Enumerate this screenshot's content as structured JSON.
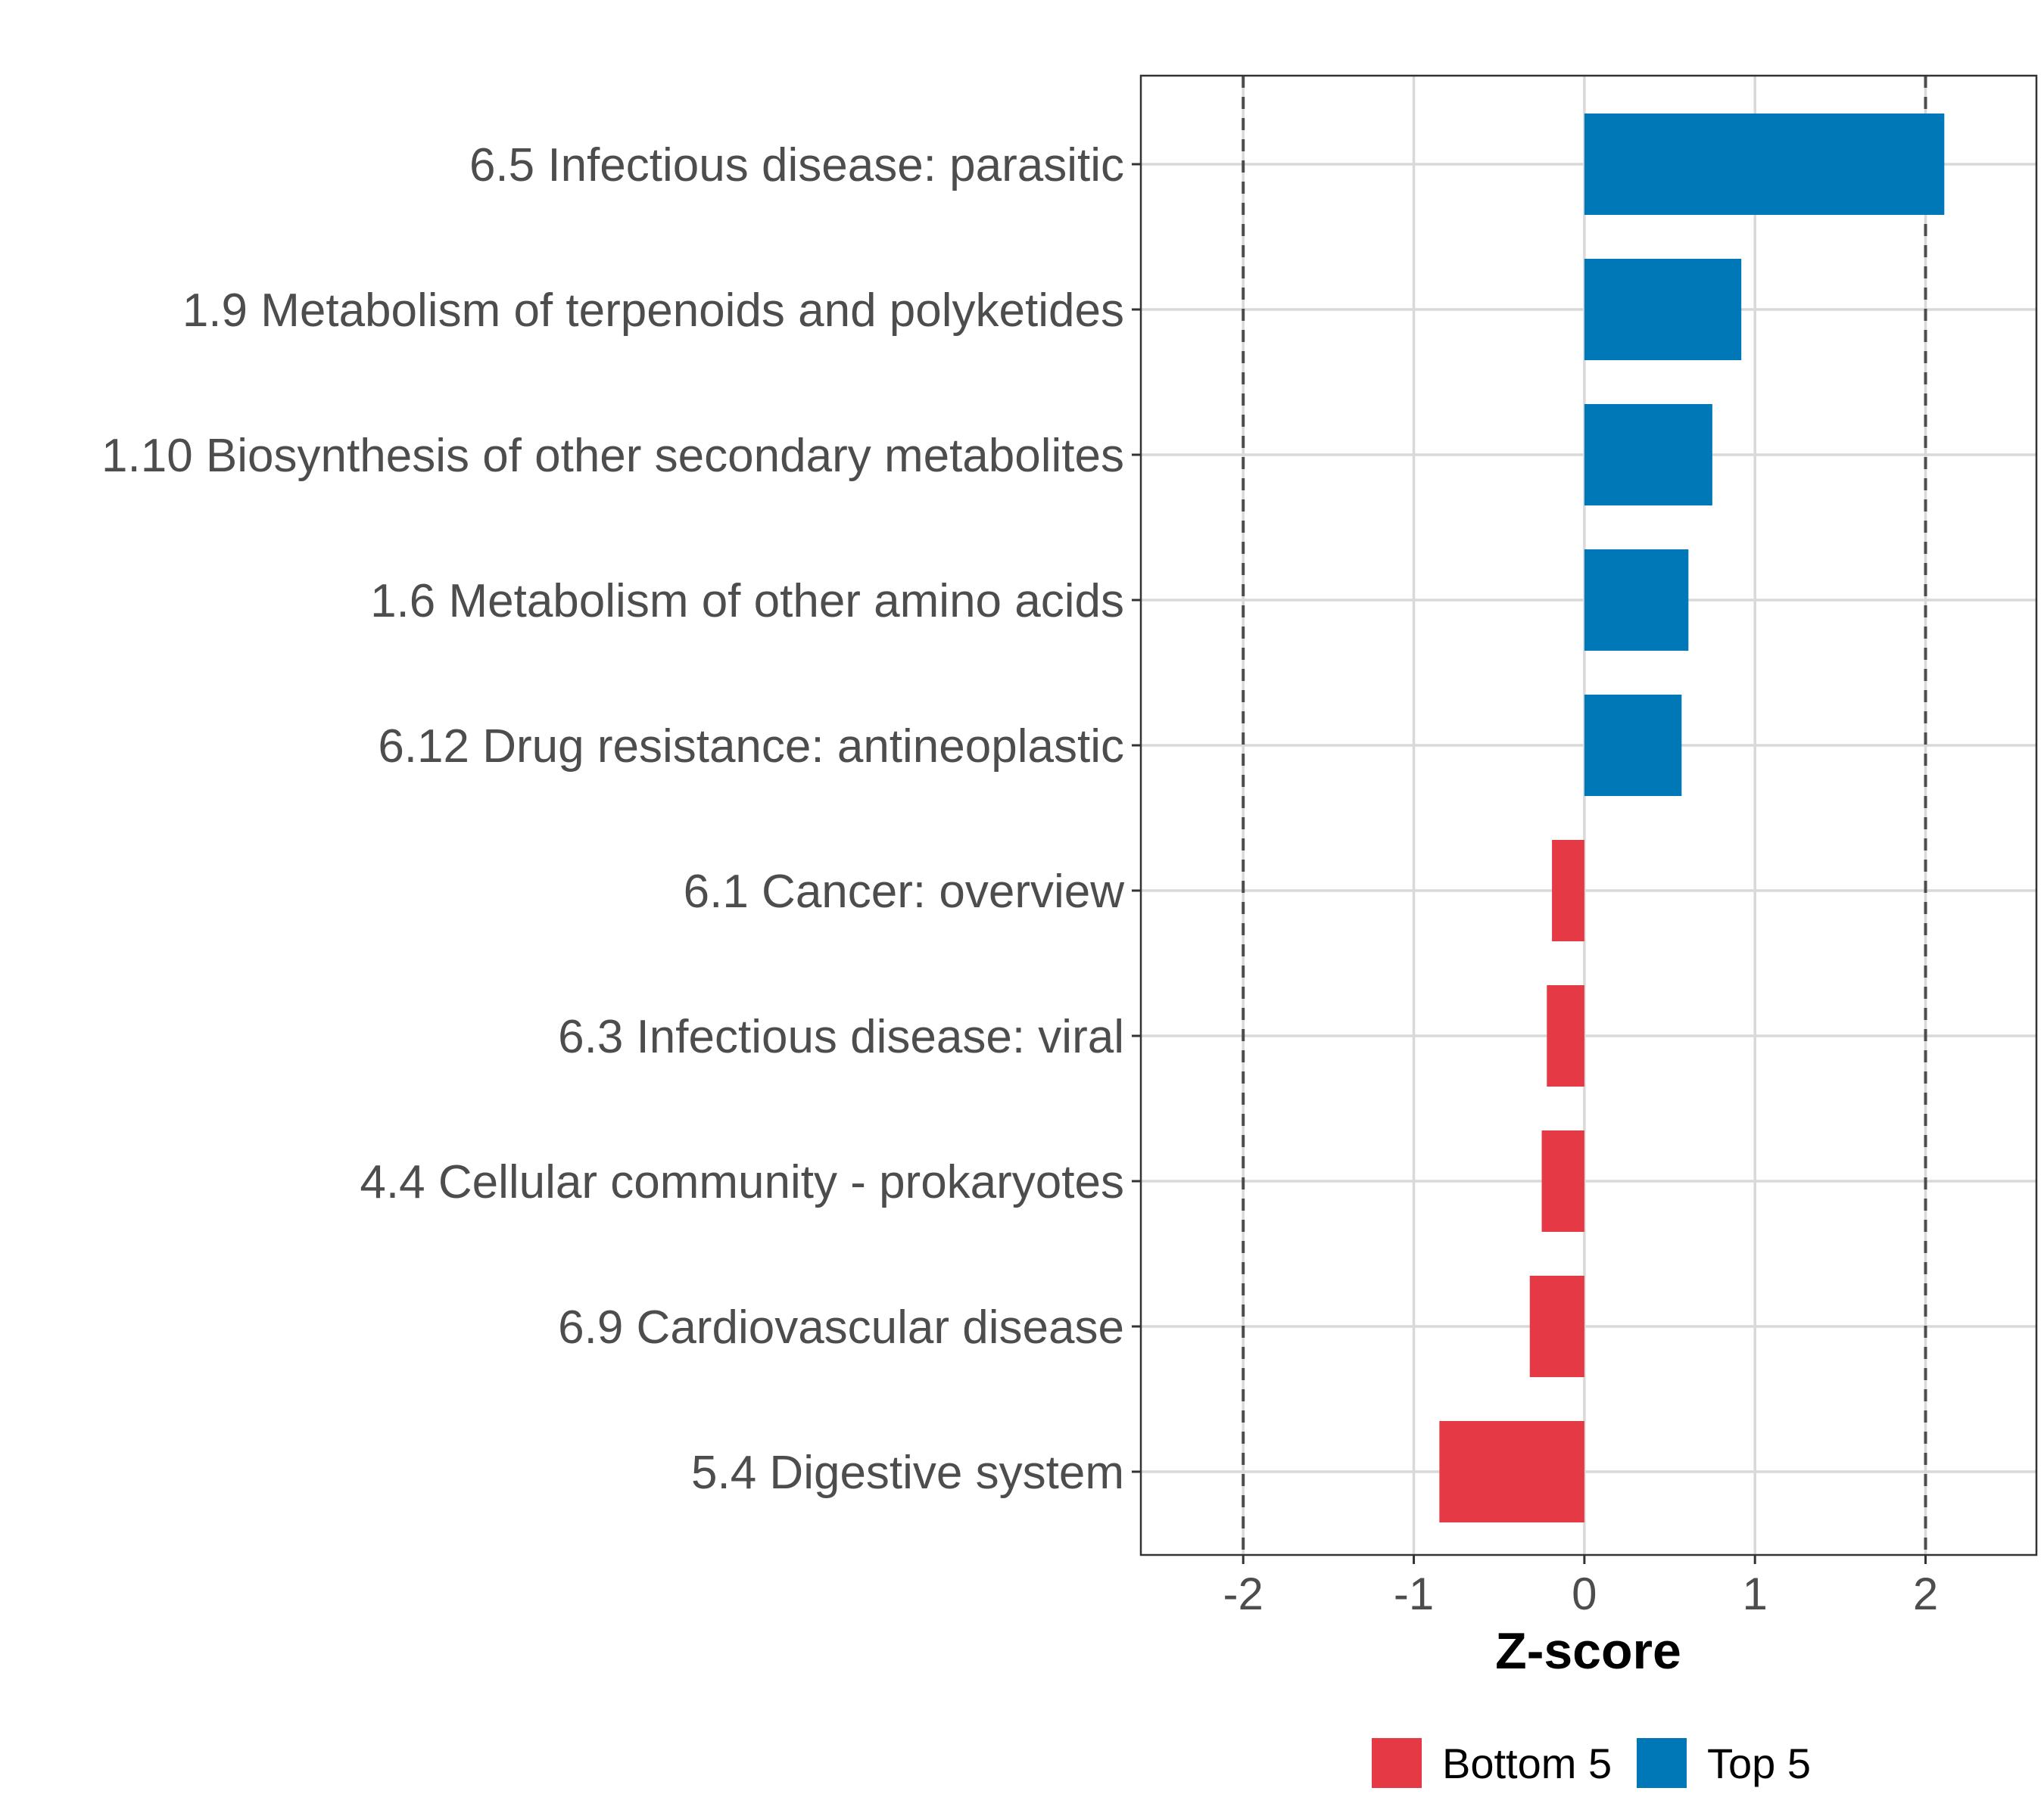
{
  "chart_data": {
    "type": "bar",
    "orientation": "horizontal",
    "title": "",
    "xlabel": "Z-score",
    "ylabel": "",
    "xlim": [
      -2.6,
      2.65
    ],
    "x_ticks": [
      "-2",
      "-1",
      "0",
      "1",
      "2"
    ],
    "x_tick_values": [
      -2,
      -1,
      0,
      1,
      2
    ],
    "reference_lines": [
      -2,
      2
    ],
    "grid": true,
    "categories": [
      "6.5 Infectious disease: parasitic",
      "1.9 Metabolism of terpenoids and polyketides",
      "1.10 Biosynthesis of other secondary metabolites",
      "1.6 Metabolism of other amino acids",
      "6.12 Drug resistance: antineoplastic",
      "6.1 Cancer: overview",
      "6.3 Infectious disease: viral",
      "4.4 Cellular community - prokaryotes",
      "6.9 Cardiovascular disease",
      "5.4 Digestive system"
    ],
    "values": [
      2.11,
      0.92,
      0.75,
      0.61,
      0.57,
      -0.19,
      -0.22,
      -0.25,
      -0.32,
      -0.85
    ],
    "groups": [
      "Top 5",
      "Top 5",
      "Top 5",
      "Top 5",
      "Top 5",
      "Bottom 5",
      "Bottom 5",
      "Bottom 5",
      "Bottom 5",
      "Bottom 5"
    ],
    "legend": [
      {
        "name": "Bottom 5",
        "color": "#e63946"
      },
      {
        "name": "Top 5",
        "color": "#0077b6"
      }
    ],
    "legend_position": "bottom"
  }
}
